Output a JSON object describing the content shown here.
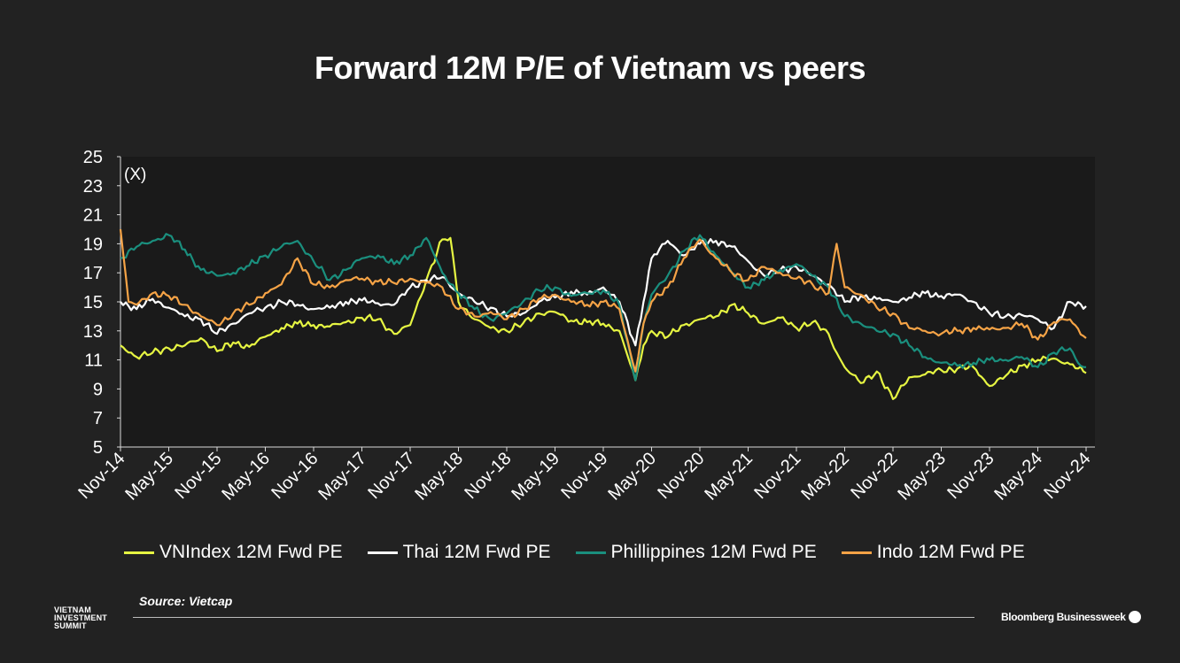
{
  "page": {
    "title": "Forward 12M P/E of Vietnam vs peers"
  },
  "source": "Source: Vietcap",
  "branding": {
    "left": [
      "VIETNAM",
      "INVESTMENT",
      "SUMMIT"
    ],
    "right": "Bloomberg Businessweek"
  },
  "chart_data": {
    "type": "line",
    "title": "",
    "ylabel": "(X)",
    "xlabel": "",
    "ylim": [
      5,
      25
    ],
    "yticks": [
      5,
      7,
      9,
      11,
      13,
      15,
      17,
      19,
      21,
      23,
      25
    ],
    "xlim": [
      "Nov-14",
      "Nov-24"
    ],
    "xticks": [
      "Nov-14",
      "May-15",
      "Nov-15",
      "May-16",
      "Nov-16",
      "May-17",
      "Nov-17",
      "May-18",
      "Nov-18",
      "May-19",
      "Nov-19",
      "May-20",
      "Nov-20",
      "May-21",
      "Nov-21",
      "May-22",
      "Nov-22",
      "May-23",
      "Nov-23",
      "May-24",
      "Nov-24"
    ],
    "legend_position": "bottom",
    "grid": false,
    "series": [
      {
        "name": "VNIndex 12M Fwd PE",
        "color": "#e6f542",
        "x": [
          "Nov-14",
          "Jan-15",
          "Mar-15",
          "May-15",
          "Jul-15",
          "Sep-15",
          "Nov-15",
          "Jan-16",
          "Mar-16",
          "May-16",
          "Jul-16",
          "Sep-16",
          "Nov-16",
          "Jan-17",
          "Mar-17",
          "May-17",
          "Jul-17",
          "Sep-17",
          "Nov-17",
          "Jan-18",
          "Mar-18",
          "Apr-18",
          "May-18",
          "Jul-18",
          "Sep-18",
          "Nov-18",
          "Jan-19",
          "Mar-19",
          "May-19",
          "Jul-19",
          "Sep-19",
          "Nov-19",
          "Jan-20",
          "Mar-20",
          "Apr-20",
          "May-20",
          "Jul-20",
          "Sep-20",
          "Nov-20",
          "Jan-21",
          "Mar-21",
          "May-21",
          "Jul-21",
          "Sep-21",
          "Nov-21",
          "Jan-22",
          "Mar-22",
          "Apr-22",
          "May-22",
          "Jul-22",
          "Sep-22",
          "Nov-22",
          "Jan-23",
          "Mar-23",
          "May-23",
          "Jul-23",
          "Sep-23",
          "Nov-23",
          "Jan-24",
          "Mar-24",
          "May-24",
          "Jul-24",
          "Sep-24",
          "Nov-24"
        ],
        "values": [
          12.0,
          11.2,
          11.5,
          11.8,
          12.0,
          12.5,
          11.6,
          12.2,
          11.9,
          12.6,
          13.2,
          13.5,
          13.4,
          13.3,
          13.6,
          13.9,
          13.8,
          12.8,
          13.4,
          16.5,
          19.3,
          19.4,
          15.0,
          13.8,
          13.2,
          13.0,
          13.5,
          14.2,
          14.3,
          13.7,
          13.6,
          13.5,
          13.0,
          9.6,
          12.0,
          13.0,
          12.6,
          13.4,
          13.8,
          14.0,
          14.8,
          14.2,
          13.5,
          13.9,
          13.2,
          13.6,
          12.8,
          11.5,
          10.5,
          9.4,
          10.2,
          8.3,
          9.8,
          10.0,
          10.3,
          10.4,
          10.5,
          9.2,
          9.9,
          10.6,
          11.0,
          11.1,
          10.7,
          10.1
        ]
      },
      {
        "name": "Thai 12M Fwd PE",
        "color": "#ffffff",
        "x": [
          "Nov-14",
          "Jan-15",
          "Mar-15",
          "May-15",
          "Jul-15",
          "Sep-15",
          "Nov-15",
          "Jan-16",
          "Mar-16",
          "May-16",
          "Jul-16",
          "Sep-16",
          "Nov-16",
          "Jan-17",
          "Mar-17",
          "May-17",
          "Jul-17",
          "Sep-17",
          "Nov-17",
          "Jan-18",
          "Mar-18",
          "May-18",
          "Jul-18",
          "Sep-18",
          "Nov-18",
          "Jan-19",
          "Mar-19",
          "May-19",
          "Jul-19",
          "Sep-19",
          "Nov-19",
          "Jan-20",
          "Mar-20",
          "Apr-20",
          "May-20",
          "Jul-20",
          "Sep-20",
          "Nov-20",
          "Jan-21",
          "Mar-21",
          "May-21",
          "Jul-21",
          "Sep-21",
          "Nov-21",
          "Jan-22",
          "Mar-22",
          "May-22",
          "Jul-22",
          "Sep-22",
          "Nov-22",
          "Jan-23",
          "Mar-23",
          "May-23",
          "Jul-23",
          "Sep-23",
          "Nov-23",
          "Jan-24",
          "Mar-24",
          "May-24",
          "Jul-24",
          "Sep-24",
          "Nov-24"
        ],
        "values": [
          15.0,
          14.5,
          15.2,
          14.6,
          14.0,
          13.8,
          12.8,
          13.5,
          14.2,
          14.6,
          15.0,
          14.8,
          14.5,
          14.6,
          15.0,
          15.1,
          14.9,
          14.8,
          16.0,
          16.5,
          16.7,
          15.6,
          15.0,
          14.6,
          14.0,
          14.2,
          15.0,
          15.3,
          15.7,
          15.5,
          16.0,
          15.0,
          12.0,
          15.0,
          18.0,
          19.2,
          18.2,
          19.0,
          19.2,
          18.8,
          17.8,
          16.8,
          17.2,
          17.4,
          16.8,
          16.2,
          15.0,
          15.4,
          15.2,
          15.0,
          15.3,
          15.6,
          15.4,
          15.5,
          15.0,
          14.2,
          14.0,
          14.1,
          13.8,
          13.2,
          15.0,
          14.7
        ]
      },
      {
        "name": "Phillippines 12M Fwd PE",
        "color": "#1a8f7e",
        "x": [
          "Nov-14",
          "Jan-15",
          "Mar-15",
          "May-15",
          "Jul-15",
          "Sep-15",
          "Nov-15",
          "Jan-16",
          "Mar-16",
          "May-16",
          "Jul-16",
          "Sep-16",
          "Nov-16",
          "Jan-17",
          "Mar-17",
          "May-17",
          "Jul-17",
          "Sep-17",
          "Nov-17",
          "Jan-18",
          "Mar-18",
          "May-18",
          "Jul-18",
          "Sep-18",
          "Nov-18",
          "Jan-19",
          "Mar-19",
          "May-19",
          "Jul-19",
          "Sep-19",
          "Nov-19",
          "Jan-20",
          "Mar-20",
          "Apr-20",
          "May-20",
          "Jul-20",
          "Sep-20",
          "Nov-20",
          "Jan-21",
          "Mar-21",
          "May-21",
          "Jul-21",
          "Sep-21",
          "Nov-21",
          "Jan-22",
          "Mar-22",
          "May-22",
          "Jul-22",
          "Sep-22",
          "Nov-22",
          "Jan-23",
          "Mar-23",
          "May-23",
          "Jul-23",
          "Sep-23",
          "Nov-23",
          "Jan-24",
          "Mar-24",
          "May-24",
          "Jul-24",
          "Sep-24",
          "Oct-24",
          "Nov-24"
        ],
        "values": [
          18.0,
          18.8,
          19.2,
          19.6,
          18.6,
          17.2,
          16.8,
          17.0,
          17.5,
          18.2,
          18.8,
          19.2,
          17.8,
          16.5,
          17.2,
          18.0,
          18.2,
          17.6,
          18.2,
          19.4,
          17.0,
          15.6,
          14.5,
          13.8,
          14.2,
          15.0,
          15.8,
          16.0,
          15.4,
          15.6,
          15.8,
          14.8,
          9.6,
          13.5,
          15.5,
          16.8,
          18.5,
          19.6,
          18.2,
          17.0,
          16.0,
          16.5,
          17.2,
          17.6,
          16.8,
          16.0,
          14.0,
          13.5,
          13.0,
          12.8,
          12.0,
          11.2,
          10.8,
          10.6,
          10.8,
          11.0,
          11.0,
          11.2,
          10.5,
          11.5,
          11.8,
          10.8,
          10.5
        ]
      },
      {
        "name": "Indo 12M Fwd PE",
        "color": "#f5a346",
        "x": [
          "Nov-14",
          "Dec-14",
          "Jan-15",
          "Mar-15",
          "May-15",
          "Jul-15",
          "Sep-15",
          "Nov-15",
          "Jan-16",
          "Mar-16",
          "May-16",
          "Jul-16",
          "Sep-16",
          "Nov-16",
          "Jan-17",
          "Mar-17",
          "May-17",
          "Jul-17",
          "Sep-17",
          "Nov-17",
          "Jan-18",
          "Mar-18",
          "May-18",
          "Jul-18",
          "Sep-18",
          "Nov-18",
          "Jan-19",
          "Mar-19",
          "May-19",
          "Jul-19",
          "Sep-19",
          "Nov-19",
          "Jan-20",
          "Mar-20",
          "Apr-20",
          "May-20",
          "Jul-20",
          "Sep-20",
          "Nov-20",
          "Jan-21",
          "Mar-21",
          "May-21",
          "Jul-21",
          "Sep-21",
          "Nov-21",
          "Jan-22",
          "Mar-22",
          "Apr-22",
          "May-22",
          "Jul-22",
          "Sep-22",
          "Nov-22",
          "Jan-23",
          "Mar-23",
          "May-23",
          "Jul-23",
          "Sep-23",
          "Nov-23",
          "Jan-24",
          "Mar-24",
          "May-24",
          "Jul-24",
          "Sep-24",
          "Nov-24"
        ],
        "values": [
          20.0,
          15.0,
          14.8,
          15.6,
          15.4,
          14.8,
          14.0,
          13.4,
          14.2,
          14.8,
          15.6,
          16.2,
          18.0,
          16.2,
          16.0,
          16.5,
          16.6,
          16.4,
          16.3,
          16.6,
          16.3,
          16.0,
          14.5,
          14.0,
          14.3,
          13.8,
          14.5,
          15.2,
          15.5,
          15.0,
          14.8,
          15.0,
          14.5,
          10.2,
          13.5,
          15.0,
          16.0,
          18.0,
          19.3,
          18.0,
          17.0,
          16.5,
          17.4,
          17.0,
          16.6,
          16.2,
          15.6,
          19.0,
          16.0,
          15.5,
          14.6,
          14.2,
          13.2,
          13.0,
          12.8,
          13.0,
          13.2,
          13.1,
          13.2,
          13.5,
          12.4,
          13.6,
          13.8,
          12.5
        ]
      }
    ]
  }
}
